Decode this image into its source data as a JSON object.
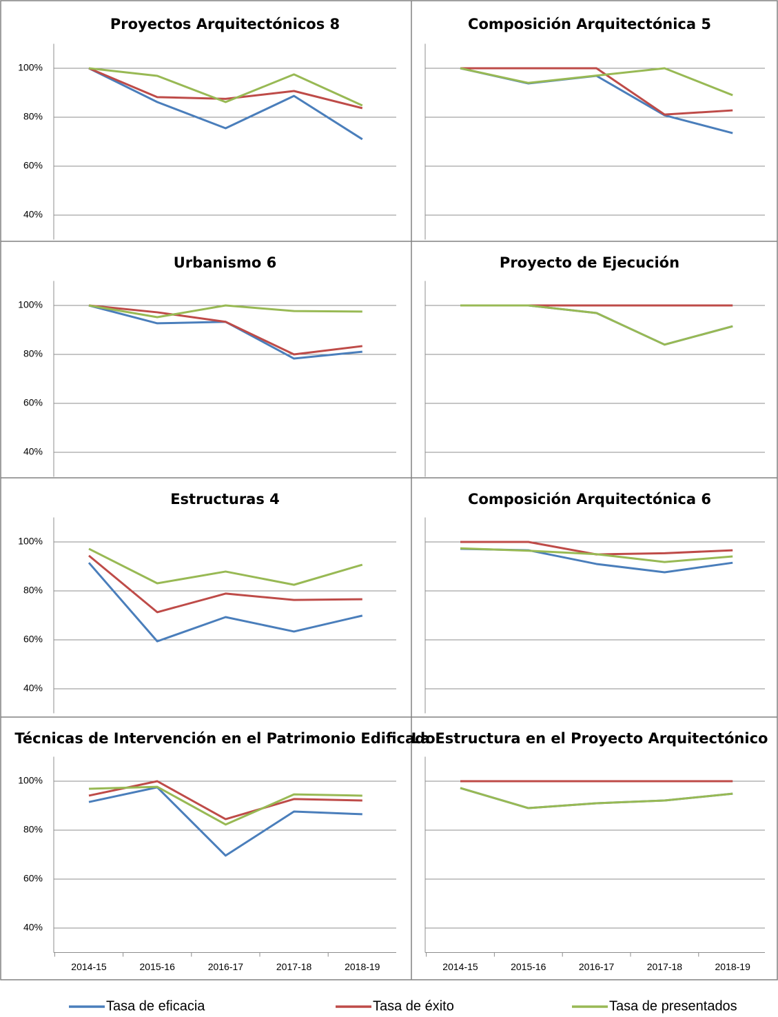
{
  "legend": [
    {
      "name": "Tasa de eficacia",
      "color": "#4a7ebb"
    },
    {
      "name": "Tasa de éxito",
      "color": "#be4b48"
    },
    {
      "name": "Tasa de presentados",
      "color": "#98b954"
    }
  ],
  "chart_data": [
    {
      "type": "line",
      "title": "Proyectos Arquitectónicos 8",
      "ylim": [
        30,
        110
      ],
      "yticks": [
        {
          "value": 40,
          "label": "40%"
        },
        {
          "value": 60,
          "label": "60%"
        },
        {
          "value": 80,
          "label": "80%"
        },
        {
          "value": 100,
          "label": "100%"
        }
      ],
      "grid": true,
      "series": [
        {
          "values": [
            100,
            86.2,
            75.5,
            88.7,
            71
          ]
        },
        {
          "values": [
            100,
            88.2,
            87.5,
            90.7,
            83.7
          ]
        },
        {
          "values": [
            100,
            96.9,
            86.2,
            97.5,
            84.8
          ]
        }
      ]
    },
    {
      "type": "line",
      "title": "Composición Arquitectónica 5",
      "ylim": [
        30,
        110
      ],
      "yticks": [
        40,
        60,
        80,
        100
      ],
      "grid": true,
      "series": [
        {
          "values": [
            100,
            93.8,
            96.9,
            80.8,
            73.5
          ]
        },
        {
          "values": [
            100,
            100,
            100,
            81.1,
            82.8
          ]
        },
        {
          "values": [
            100,
            94,
            97,
            100,
            89
          ]
        }
      ]
    },
    {
      "type": "line",
      "title": "Urbanismo 6",
      "ylim": [
        30,
        110
      ],
      "yticks": [
        {
          "value": 40,
          "label": "40%"
        },
        {
          "value": 60,
          "label": "60%"
        },
        {
          "value": 80,
          "label": "80%"
        },
        {
          "value": 100,
          "label": "100%"
        }
      ],
      "grid": true,
      "series": [
        {
          "values": [
            100,
            92.7,
            93.3,
            78.3,
            81.1
          ]
        },
        {
          "values": [
            100,
            97.2,
            93.3,
            80,
            83.4
          ]
        },
        {
          "values": [
            100,
            95.2,
            100,
            97.7,
            97.5
          ]
        }
      ]
    },
    {
      "type": "line",
      "title": "Proyecto de Ejecución",
      "ylim": [
        30,
        110
      ],
      "yticks": [
        40,
        60,
        80,
        100
      ],
      "grid": true,
      "series": [
        {
          "values": [
            100,
            100,
            96.9,
            84,
            91.5
          ]
        },
        {
          "values": [
            100,
            100,
            100,
            100,
            100
          ]
        },
        {
          "values": [
            100,
            100,
            96.9,
            84,
            91.5
          ]
        }
      ]
    },
    {
      "type": "line",
      "title": "Estructuras 4",
      "ylim": [
        30,
        110
      ],
      "yticks": [
        {
          "value": 40,
          "label": "40%"
        },
        {
          "value": 60,
          "label": "60%"
        },
        {
          "value": 80,
          "label": "80%"
        },
        {
          "value": 100,
          "label": "100%"
        }
      ],
      "grid": true,
      "series": [
        {
          "values": [
            91.5,
            59.4,
            69.3,
            63.4,
            69.9
          ]
        },
        {
          "values": [
            94.4,
            71.3,
            78.9,
            76.3,
            76.6
          ]
        },
        {
          "values": [
            97.2,
            83.1,
            87.9,
            82.5,
            90.7
          ]
        }
      ]
    },
    {
      "type": "line",
      "title": "Composición Arquitectónica 6",
      "ylim": [
        30,
        110
      ],
      "yticks": [
        40,
        60,
        80,
        100
      ],
      "grid": true,
      "series": [
        {
          "values": [
            97.2,
            96.6,
            91,
            87.6,
            91.5
          ]
        },
        {
          "values": [
            100,
            100,
            94.9,
            95.4,
            96.6
          ]
        },
        {
          "values": [
            97.4,
            96.4,
            95,
            91.8,
            94.1
          ]
        }
      ]
    },
    {
      "type": "line",
      "title": "Técnicas de Intervención en el Patrimonio Edificado",
      "categories": [
        "2014-15",
        "2015-16",
        "2016-17",
        "2017-18",
        "2018-19"
      ],
      "ylim": [
        30,
        110
      ],
      "yticks": [
        {
          "value": 40,
          "label": "40%"
        },
        {
          "value": 60,
          "label": "60%"
        },
        {
          "value": 80,
          "label": "80%"
        },
        {
          "value": 100,
          "label": "100%"
        }
      ],
      "grid": true,
      "series": [
        {
          "values": [
            91.5,
            97.5,
            69.6,
            87.6,
            86.5
          ]
        },
        {
          "values": [
            94.1,
            100,
            84.5,
            92.7,
            92.1
          ]
        },
        {
          "values": [
            96.9,
            97.7,
            82.3,
            94.6,
            94.1
          ]
        }
      ]
    },
    {
      "type": "line",
      "title": "La Estructura en el Proyecto Arquitectónico",
      "categories": [
        "2014-15",
        "2015-16",
        "2016-17",
        "2017-18",
        "2018-19"
      ],
      "ylim": [
        30,
        110
      ],
      "yticks": [
        40,
        60,
        80,
        100
      ],
      "grid": true,
      "series": [
        {
          "values": [
            97.2,
            89,
            91,
            92.1,
            94.9
          ]
        },
        {
          "values": [
            100,
            100,
            100,
            100,
            100
          ]
        },
        {
          "values": [
            97.2,
            89,
            91,
            92.1,
            94.9
          ]
        }
      ]
    }
  ]
}
